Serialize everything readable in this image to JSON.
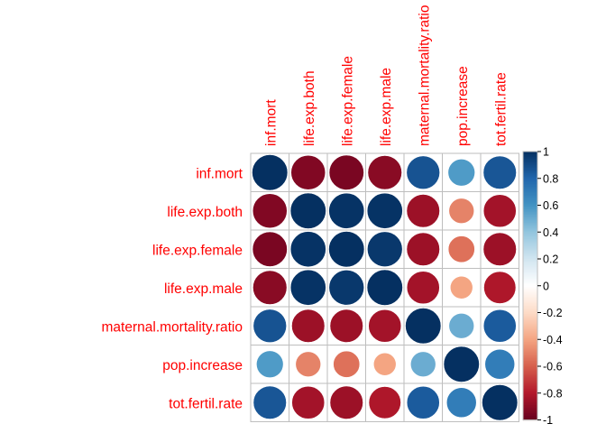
{
  "chart_data": {
    "type": "heatmap",
    "variables": [
      "inf.mort",
      "life.exp.both",
      "life.exp.female",
      "life.exp.male",
      "maternal.mortality.ratio",
      "pop.increase",
      "tot.fertil.rate"
    ],
    "matrix": [
      [
        1.0,
        -0.93,
        -0.95,
        -0.91,
        0.87,
        0.57,
        0.86
      ],
      [
        -0.93,
        1.0,
        0.99,
        0.99,
        -0.86,
        -0.5,
        -0.84
      ],
      [
        -0.95,
        0.99,
        1.0,
        0.97,
        -0.86,
        -0.55,
        -0.86
      ],
      [
        -0.91,
        0.99,
        0.97,
        1.0,
        -0.84,
        -0.4,
        -0.81
      ],
      [
        0.87,
        -0.86,
        -0.86,
        -0.84,
        1.0,
        0.5,
        0.84
      ],
      [
        0.57,
        -0.5,
        -0.55,
        -0.4,
        0.5,
        1.0,
        0.7
      ],
      [
        0.86,
        -0.84,
        -0.86,
        -0.81,
        0.84,
        0.7,
        1.0
      ]
    ],
    "colorbar": {
      "range": [
        -1,
        1
      ],
      "tick_labels": [
        "-1",
        "-0.8",
        "-0.6",
        "-0.4",
        "-0.2",
        "0",
        "0.2",
        "0.4",
        "0.6",
        "0.8",
        "1"
      ],
      "tick_values": [
        -1,
        -0.8,
        -0.6,
        -0.4,
        -0.2,
        0,
        0.2,
        0.4,
        0.6,
        0.8,
        1
      ]
    },
    "label_color": "#ff0000",
    "palette": [
      "#67001F",
      "#B2182B",
      "#D6604D",
      "#F4A582",
      "#FDDBC7",
      "#FFFFFF",
      "#D1E5F0",
      "#92C5DE",
      "#4393C3",
      "#2166AC",
      "#053061"
    ],
    "title": "",
    "xlabel": "",
    "ylabel": ""
  }
}
